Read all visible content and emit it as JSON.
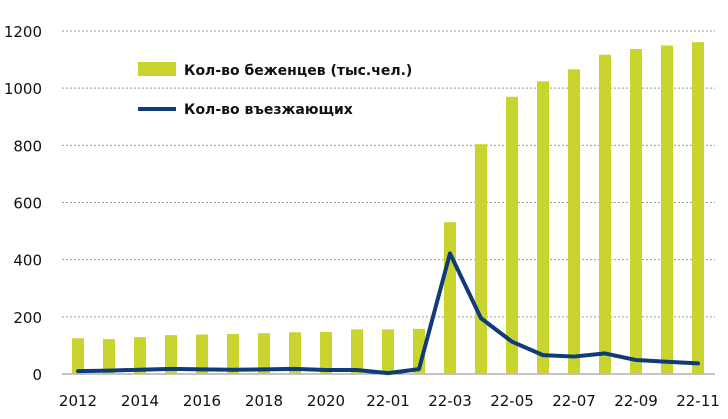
{
  "chart_data": {
    "type": "bar+line",
    "title": "",
    "xlabel": "",
    "ylabel": "",
    "ylim": [
      0,
      1200
    ],
    "yticks": [
      0,
      200,
      400,
      600,
      800,
      1000,
      1200
    ],
    "grid": true,
    "legend_position": "top-left",
    "categories": [
      "2012",
      "2013",
      "2014",
      "2015",
      "2016",
      "2017",
      "2018",
      "2019",
      "2020",
      "2021",
      "22-01",
      "22-02",
      "22-03",
      "22-04",
      "22-05",
      "22-06",
      "22-07",
      "22-08",
      "22-09",
      "22-10",
      "22-11"
    ],
    "xtick_labels": [
      "2012",
      "2014",
      "2016",
      "2018",
      "2020",
      "22-01",
      "22-03",
      "22-05",
      "22-07",
      "22-09",
      "22-11"
    ],
    "series": [
      {
        "name": "Кол-во беженцев (тыс.чел.)",
        "type": "bar",
        "color": "#c9d52e",
        "values": [
          125,
          122,
          129,
          136,
          138,
          140,
          143,
          146,
          147,
          156,
          156,
          158,
          531,
          804,
          970,
          1024,
          1066,
          1117,
          1137,
          1149,
          1161
        ]
      },
      {
        "name": "Кол-во въезжающих",
        "type": "line",
        "color": "#0f3b78",
        "values": [
          10,
          12,
          15,
          18,
          16,
          15,
          16,
          18,
          14,
          14,
          3,
          17,
          422,
          195,
          113,
          66,
          61,
          72,
          49,
          43,
          37
        ]
      }
    ]
  }
}
